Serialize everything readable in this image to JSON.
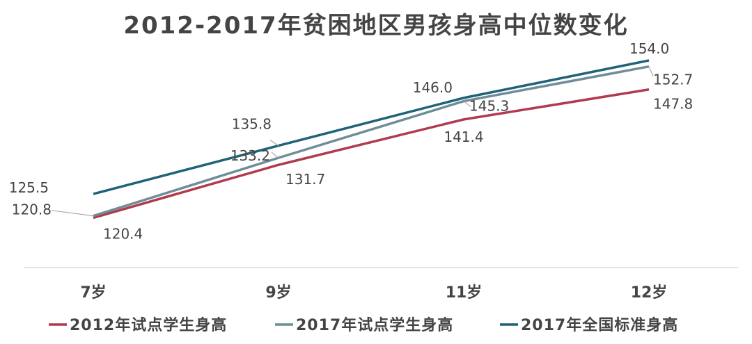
{
  "chart_data": {
    "type": "line",
    "title": "2012-2017年贫困地区男孩身高中位数变化",
    "categories": [
      "7岁",
      "9岁",
      "11岁",
      "12岁"
    ],
    "ylim": [
      112,
      158
    ],
    "grid": false,
    "legend_position": "bottom",
    "series": [
      {
        "name": "2012年试点学生身高",
        "color": "#b23a4e",
        "values": [
          120.4,
          131.7,
          141.4,
          147.8
        ],
        "labels": [
          "120.4",
          "131.7",
          "141.4",
          "147.8"
        ]
      },
      {
        "name": "2017年试点学生身高",
        "color": "#6f8d97",
        "values": [
          120.8,
          133.2,
          145.3,
          152.7
        ],
        "labels": [
          "120.8",
          "133.2",
          "145.3",
          "152.7"
        ]
      },
      {
        "name": "2017年全国标准身高",
        "color": "#1f6378",
        "values": [
          125.5,
          135.8,
          146.0,
          154.0
        ],
        "labels": [
          "125.5",
          "135.8",
          "146.0",
          "154.0"
        ]
      }
    ]
  }
}
